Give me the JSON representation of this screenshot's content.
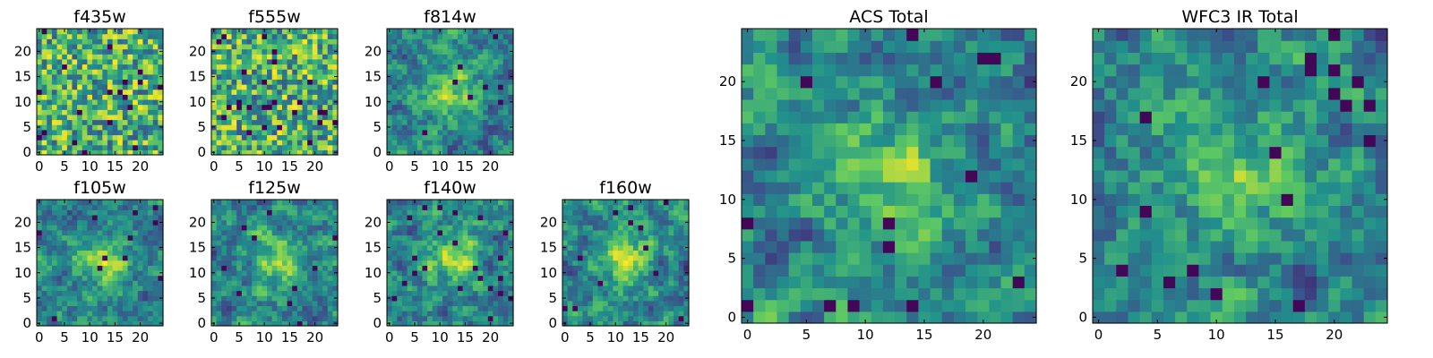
{
  "chart_data": [
    {
      "type": "heatmap",
      "title": "f435w",
      "grid_size": 25,
      "colormap": "viridis",
      "pattern": "noise",
      "xticks": [
        "0",
        "5",
        "10",
        "15",
        "20"
      ],
      "yticks": [
        "0",
        "5",
        "10",
        "15",
        "20"
      ]
    },
    {
      "type": "heatmap",
      "title": "f555w",
      "grid_size": 25,
      "colormap": "viridis",
      "pattern": "noise",
      "xticks": [
        "0",
        "5",
        "10",
        "15",
        "20"
      ],
      "yticks": [
        "0",
        "5",
        "10",
        "15",
        "20"
      ]
    },
    {
      "type": "heatmap",
      "title": "f814w",
      "grid_size": 25,
      "colormap": "viridis",
      "pattern": "central-source",
      "xticks": [
        "0",
        "5",
        "10",
        "15",
        "20"
      ],
      "yticks": [
        "0",
        "5",
        "10",
        "15",
        "20"
      ]
    },
    {
      "type": "heatmap",
      "title": "f105w",
      "grid_size": 25,
      "colormap": "viridis",
      "pattern": "central-source",
      "xticks": [
        "0",
        "5",
        "10",
        "15",
        "20"
      ],
      "yticks": [
        "0",
        "5",
        "10",
        "15",
        "20"
      ]
    },
    {
      "type": "heatmap",
      "title": "f125w",
      "grid_size": 25,
      "colormap": "viridis",
      "pattern": "central-source",
      "xticks": [
        "0",
        "5",
        "10",
        "15",
        "20"
      ],
      "yticks": [
        "0",
        "5",
        "10",
        "15",
        "20"
      ]
    },
    {
      "type": "heatmap",
      "title": "f140w",
      "grid_size": 25,
      "colormap": "viridis",
      "pattern": "central-source",
      "xticks": [
        "0",
        "5",
        "10",
        "15",
        "20"
      ],
      "yticks": [
        "0",
        "5",
        "10",
        "15",
        "20"
      ]
    },
    {
      "type": "heatmap",
      "title": "f160w",
      "grid_size": 25,
      "colormap": "viridis",
      "pattern": "central-source",
      "xticks": [
        "0",
        "5",
        "10",
        "15",
        "20"
      ],
      "yticks": [
        "0",
        "5",
        "10",
        "15",
        "20"
      ]
    },
    {
      "type": "heatmap",
      "title": "ACS Total",
      "grid_size": 25,
      "colormap": "viridis",
      "pattern": "central-source",
      "xticks": [
        "0",
        "5",
        "10",
        "15",
        "20"
      ],
      "yticks": [
        "0",
        "5",
        "10",
        "15",
        "20"
      ]
    },
    {
      "type": "heatmap",
      "title": "WFC3 IR Total",
      "grid_size": 25,
      "colormap": "viridis",
      "pattern": "central-source",
      "xticks": [
        "0",
        "5",
        "10",
        "15",
        "20"
      ],
      "yticks": [
        "0",
        "5",
        "10",
        "15",
        "20"
      ]
    }
  ],
  "colors": {
    "viridis": [
      "#440154",
      "#3b528b",
      "#21918c",
      "#5ec962",
      "#fde725"
    ]
  }
}
